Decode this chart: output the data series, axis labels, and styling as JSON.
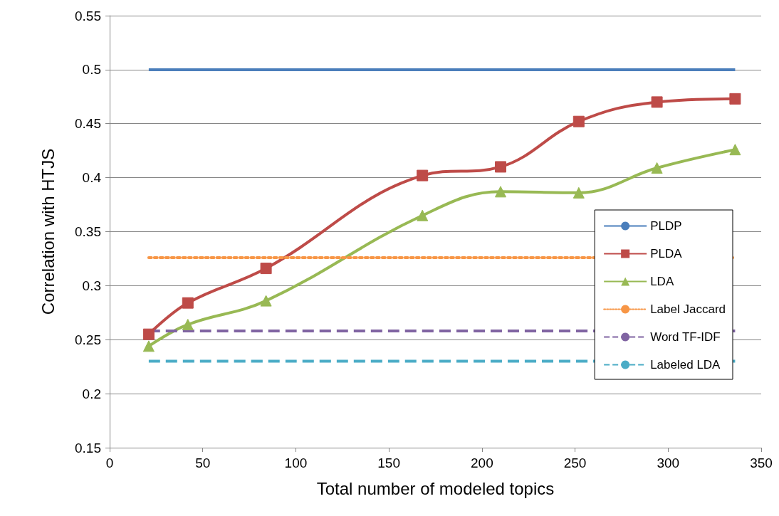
{
  "chart_data": {
    "type": "line",
    "xlabel": "Total number of modeled topics",
    "ylabel": "Correlation with HTJS",
    "xlim": [
      0,
      350
    ],
    "xticks": [
      0,
      50,
      100,
      150,
      200,
      250,
      300,
      350
    ],
    "ylim": [
      0.15,
      0.55
    ],
    "yticks": [
      0.15,
      0.2,
      0.25,
      0.3,
      0.35,
      0.4,
      0.45,
      0.5,
      0.55
    ],
    "grid": "y",
    "legend": "right",
    "series": [
      {
        "name": "PLDP",
        "color": "#4a7ebb",
        "x": [
          21,
          336
        ],
        "values": [
          0.5,
          0.5
        ],
        "marker": "none",
        "line_style": "solid"
      },
      {
        "name": "PLDA",
        "color": "#be4b48",
        "x": [
          21,
          42,
          84,
          168,
          210,
          252,
          294,
          336
        ],
        "values": [
          0.255,
          0.284,
          0.316,
          0.402,
          0.41,
          0.452,
          0.47,
          0.473
        ],
        "marker": "square",
        "line_style": "solid"
      },
      {
        "name": "LDA",
        "color": "#98b954",
        "x": [
          21,
          42,
          84,
          168,
          210,
          252,
          294,
          336
        ],
        "values": [
          0.244,
          0.264,
          0.286,
          0.365,
          0.387,
          0.386,
          0.409,
          0.426
        ],
        "marker": "triangle",
        "line_style": "solid"
      },
      {
        "name": "Label Jaccard",
        "color": "#f79646",
        "x": [
          21,
          336
        ],
        "values": [
          0.326,
          0.326
        ],
        "marker": "none",
        "line_style": "dotted"
      },
      {
        "name": "Word TF-IDF",
        "color": "#8064a2",
        "x": [
          21,
          336
        ],
        "values": [
          0.258,
          0.258
        ],
        "marker": "none",
        "line_style": "dashed"
      },
      {
        "name": "Labeled LDA",
        "color": "#4bacc6",
        "x": [
          21,
          336
        ],
        "values": [
          0.23,
          0.23
        ],
        "marker": "none",
        "line_style": "dashed"
      }
    ]
  }
}
